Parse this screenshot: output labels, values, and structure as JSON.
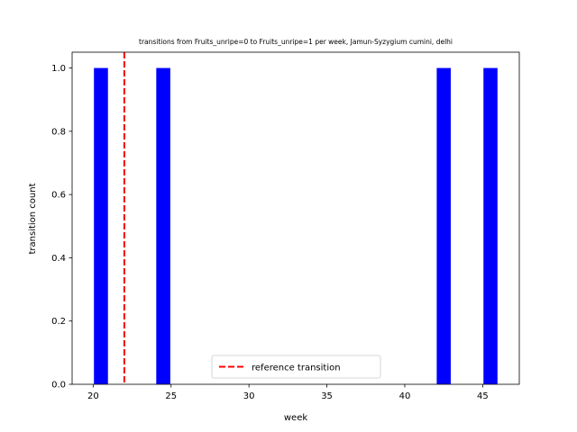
{
  "chart_data": {
    "type": "bar",
    "title": "transitions from Fruits_unripe=0 to Fruits_unripe=1 per week, Jamun-Syzygium cumini, delhi",
    "xlabel": "week",
    "ylabel": "transition count",
    "xlim": [
      18.65,
      47.35
    ],
    "ylim": [
      0,
      1.05
    ],
    "bar_width": 0.9,
    "bar_color": "#0000ff",
    "bars": [
      {
        "x": 20.5,
        "value": 1
      },
      {
        "x": 24.5,
        "value": 1
      },
      {
        "x": 42.5,
        "value": 1
      },
      {
        "x": 45.5,
        "value": 1
      }
    ],
    "x_ticks": [
      20,
      25,
      30,
      35,
      40,
      45
    ],
    "x_tick_labels": [
      "20",
      "25",
      "30",
      "35",
      "40",
      "45"
    ],
    "y_ticks": [
      0,
      0.2,
      0.4,
      0.6,
      0.8,
      1.0
    ],
    "y_tick_labels": [
      "0.0",
      "0.2",
      "0.4",
      "0.6",
      "0.8",
      "1.0"
    ],
    "reference_line": {
      "x": 22,
      "color": "#ff0000",
      "style": "dashed"
    },
    "legend": {
      "position": "lower center",
      "entries": [
        "reference transition"
      ]
    },
    "grid": false
  }
}
